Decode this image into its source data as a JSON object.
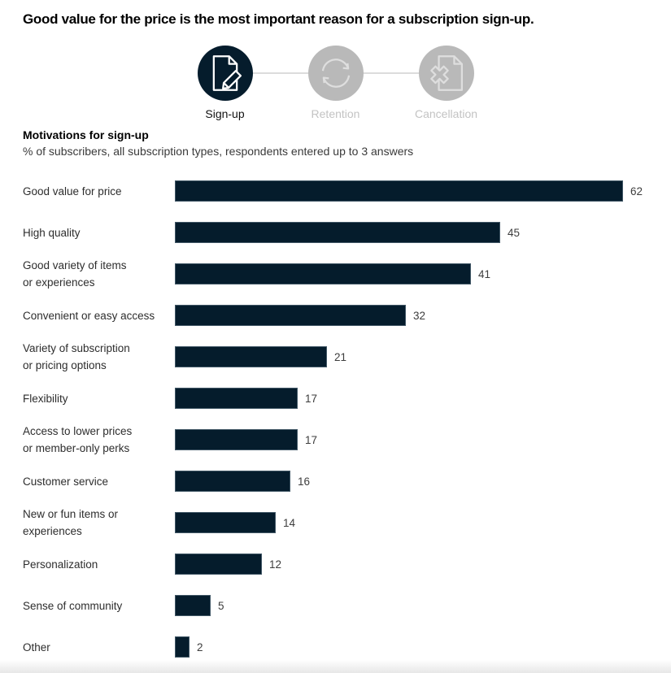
{
  "page": {
    "title": "Good value for the price is the most important reason for a subscription sign-up."
  },
  "stepper": {
    "steps": [
      {
        "label": "Sign-up",
        "icon": "document-pencil-icon",
        "active": true
      },
      {
        "label": "Retention",
        "icon": "refresh-icon",
        "active": false
      },
      {
        "label": "Cancellation",
        "icon": "document-x-icon",
        "active": false
      }
    ]
  },
  "chart_data": {
    "type": "bar",
    "orientation": "horizontal",
    "title": "Motivations for sign-up",
    "subtitle": "% of subscribers, all subscription types, respondents entered up to 3 answers",
    "categories": [
      "Good value for price",
      "High quality",
      "Good variety of items\nor experiences",
      "Convenient or easy access",
      "Variety of subscription\nor pricing options",
      "Flexibility",
      "Access to lower prices\nor member-only perks",
      "Customer service",
      "New or fun items or\nexperiences",
      "Personalization",
      "Sense of community",
      "Other"
    ],
    "values": [
      62,
      45,
      41,
      32,
      21,
      17,
      17,
      16,
      14,
      12,
      5,
      2
    ],
    "xlim": [
      0,
      62
    ],
    "value_labels": true,
    "grid": false,
    "legend": false,
    "bar_color": "#051c2c"
  },
  "colors": {
    "bar": "#051c2c",
    "active_step": "#051c2c",
    "inactive_step": "#b9b9b9",
    "connector": "#dcdcdc",
    "inactive_label": "#c3c3c3"
  }
}
